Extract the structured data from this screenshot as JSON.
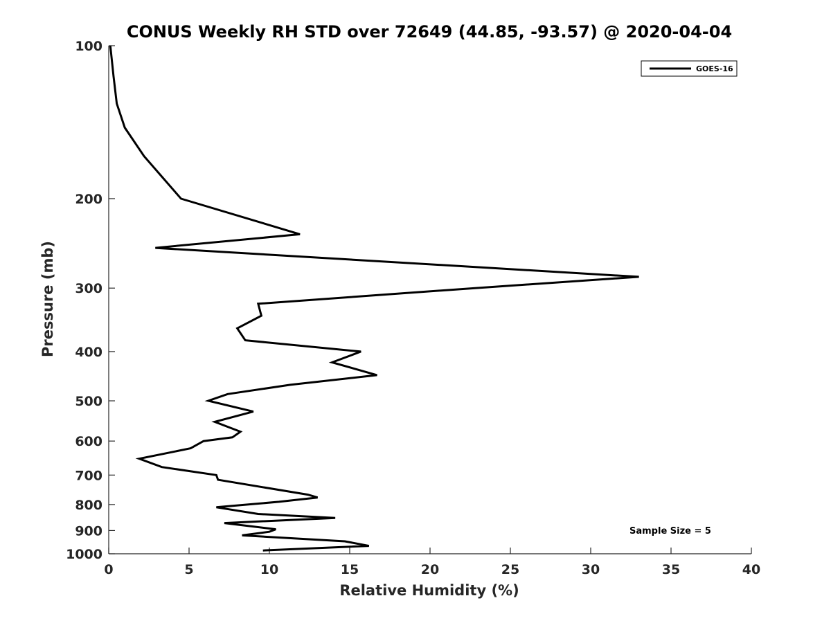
{
  "chart_data": {
    "type": "line",
    "title": "CONUS Weekly RH STD over 72649 (44.85, -93.57) @ 2020-04-04",
    "xlabel": "Relative Humidity (%)",
    "ylabel": "Pressure (mb)",
    "xlim": [
      0,
      40
    ],
    "ylim": [
      100,
      1000
    ],
    "yscale": "log",
    "y_reversed": true,
    "xticks": [
      0,
      5,
      10,
      15,
      20,
      25,
      30,
      35,
      40
    ],
    "yticks": [
      100,
      200,
      300,
      400,
      500,
      600,
      700,
      800,
      900,
      1000
    ],
    "legend_position": "top-right",
    "annotation": "Sample Size = 5",
    "colors": {
      "line": "#000000",
      "axis": "#262626"
    },
    "series": [
      {
        "name": "GOES-16",
        "x": [
          0.1,
          0.3,
          0.5,
          1.0,
          2.2,
          4.5,
          11.9,
          2.9,
          33.0,
          22.8,
          9.3,
          9.5,
          8.0,
          8.5,
          15.7,
          13.9,
          16.7,
          11.3,
          7.4,
          6.2,
          9.0,
          6.6,
          8.2,
          7.7,
          5.9,
          5.1,
          1.9,
          3.3,
          6.7,
          6.8,
          12.4,
          13.0,
          10.6,
          6.7,
          9.3,
          14.1,
          7.2,
          10.4,
          10.0,
          8.3,
          14.7,
          16.2,
          9.6
        ],
        "y": [
          100,
          115,
          130,
          145,
          165,
          200,
          235,
          250,
          285,
          300,
          322,
          340,
          360,
          380,
          400,
          420,
          445,
          465,
          485,
          500,
          525,
          550,
          575,
          590,
          600,
          620,
          650,
          675,
          700,
          715,
          765,
          775,
          790,
          810,
          835,
          850,
          870,
          895,
          905,
          920,
          945,
          965,
          985
        ]
      }
    ]
  }
}
